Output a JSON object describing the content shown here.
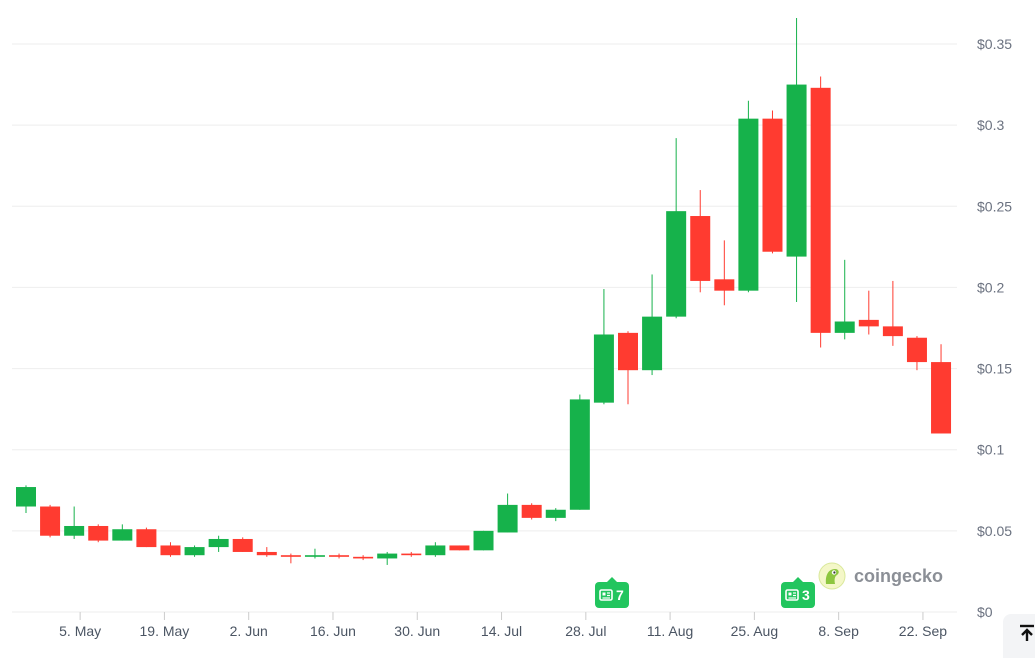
{
  "chart_data": {
    "type": "candlestick",
    "y_ticks": [
      "$0",
      "$0.05",
      "$0.1",
      "$0.15",
      "$0.2",
      "$0.25",
      "$0.3",
      "$0.35"
    ],
    "y_tick_values": [
      0,
      0.05,
      0.1,
      0.15,
      0.2,
      0.25,
      0.3,
      0.35
    ],
    "x_ticks": [
      "5. May",
      "19. May",
      "2. Jun",
      "16. Jun",
      "30. Jun",
      "14. Jul",
      "28. Jul",
      "11. Aug",
      "25. Aug",
      "8. Sep",
      "22. Sep"
    ],
    "ylim": [
      0,
      0.37
    ],
    "grid": true,
    "up_color": "#16b24b",
    "down_color": "#ff3b30",
    "candles": [
      {
        "date": "2024-04-28",
        "open": 0.065,
        "high": 0.078,
        "low": 0.061,
        "close": 0.077
      },
      {
        "date": "2024-05-02",
        "open": 0.065,
        "high": 0.066,
        "low": 0.046,
        "close": 0.047
      },
      {
        "date": "2024-05-06",
        "open": 0.047,
        "high": 0.065,
        "low": 0.045,
        "close": 0.053
      },
      {
        "date": "2024-05-10",
        "open": 0.053,
        "high": 0.054,
        "low": 0.043,
        "close": 0.044
      },
      {
        "date": "2024-05-14",
        "open": 0.044,
        "high": 0.054,
        "low": 0.044,
        "close": 0.051
      },
      {
        "date": "2024-05-18",
        "open": 0.051,
        "high": 0.052,
        "low": 0.04,
        "close": 0.04
      },
      {
        "date": "2024-05-22",
        "open": 0.041,
        "high": 0.043,
        "low": 0.034,
        "close": 0.035
      },
      {
        "date": "2024-05-26",
        "open": 0.035,
        "high": 0.041,
        "low": 0.034,
        "close": 0.04
      },
      {
        "date": "2024-05-30",
        "open": 0.04,
        "high": 0.047,
        "low": 0.037,
        "close": 0.045
      },
      {
        "date": "2024-06-03",
        "open": 0.045,
        "high": 0.046,
        "low": 0.037,
        "close": 0.037
      },
      {
        "date": "2024-06-07",
        "open": 0.037,
        "high": 0.04,
        "low": 0.034,
        "close": 0.035
      },
      {
        "date": "2024-06-11",
        "open": 0.035,
        "high": 0.036,
        "low": 0.03,
        "close": 0.034
      },
      {
        "date": "2024-06-15",
        "open": 0.034,
        "high": 0.039,
        "low": 0.033,
        "close": 0.035
      },
      {
        "date": "2024-06-19",
        "open": 0.035,
        "high": 0.036,
        "low": 0.033,
        "close": 0.034
      },
      {
        "date": "2024-06-23",
        "open": 0.034,
        "high": 0.035,
        "low": 0.032,
        "close": 0.033
      },
      {
        "date": "2024-06-27",
        "open": 0.033,
        "high": 0.037,
        "low": 0.029,
        "close": 0.036
      },
      {
        "date": "2024-07-01",
        "open": 0.036,
        "high": 0.037,
        "low": 0.034,
        "close": 0.035
      },
      {
        "date": "2024-07-05",
        "open": 0.035,
        "high": 0.043,
        "low": 0.034,
        "close": 0.041
      },
      {
        "date": "2024-07-09",
        "open": 0.041,
        "high": 0.041,
        "low": 0.038,
        "close": 0.038
      },
      {
        "date": "2024-07-13",
        "open": 0.038,
        "high": 0.05,
        "low": 0.038,
        "close": 0.05
      },
      {
        "date": "2024-07-17",
        "open": 0.049,
        "high": 0.073,
        "low": 0.049,
        "close": 0.066
      },
      {
        "date": "2024-07-21",
        "open": 0.066,
        "high": 0.067,
        "low": 0.057,
        "close": 0.058
      },
      {
        "date": "2024-07-25",
        "open": 0.058,
        "high": 0.064,
        "low": 0.056,
        "close": 0.063
      },
      {
        "date": "2024-07-29",
        "open": 0.063,
        "high": 0.134,
        "low": 0.063,
        "close": 0.131
      },
      {
        "date": "2024-08-02",
        "open": 0.129,
        "high": 0.199,
        "low": 0.128,
        "close": 0.171
      },
      {
        "date": "2024-08-06",
        "open": 0.172,
        "high": 0.173,
        "low": 0.128,
        "close": 0.149
      },
      {
        "date": "2024-08-10",
        "open": 0.149,
        "high": 0.208,
        "low": 0.146,
        "close": 0.182
      },
      {
        "date": "2024-08-14",
        "open": 0.182,
        "high": 0.292,
        "low": 0.181,
        "close": 0.247
      },
      {
        "date": "2024-08-18",
        "open": 0.244,
        "high": 0.26,
        "low": 0.197,
        "close": 0.204
      },
      {
        "date": "2024-08-22",
        "open": 0.205,
        "high": 0.229,
        "low": 0.189,
        "close": 0.198
      },
      {
        "date": "2024-08-26",
        "open": 0.198,
        "high": 0.315,
        "low": 0.197,
        "close": 0.304
      },
      {
        "date": "2024-08-30",
        "open": 0.304,
        "high": 0.309,
        "low": 0.221,
        "close": 0.222
      },
      {
        "date": "2024-09-03",
        "open": 0.219,
        "high": 0.366,
        "low": 0.191,
        "close": 0.325
      },
      {
        "date": "2024-09-07",
        "open": 0.323,
        "high": 0.33,
        "low": 0.163,
        "close": 0.172
      },
      {
        "date": "2024-09-11",
        "open": 0.172,
        "high": 0.217,
        "low": 0.168,
        "close": 0.179
      },
      {
        "date": "2024-09-15",
        "open": 0.18,
        "high": 0.198,
        "low": 0.171,
        "close": 0.176
      },
      {
        "date": "2024-09-19",
        "open": 0.176,
        "high": 0.204,
        "low": 0.164,
        "close": 0.17
      },
      {
        "date": "2024-09-23",
        "open": 0.169,
        "high": 0.17,
        "low": 0.149,
        "close": 0.154
      },
      {
        "date": "2024-09-27",
        "open": 0.154,
        "high": 0.165,
        "low": 0.11,
        "close": 0.11
      }
    ]
  },
  "news_badges": [
    {
      "count": "7",
      "icon": "newspaper-icon"
    },
    {
      "count": "3",
      "icon": "newspaper-icon"
    }
  ],
  "watermark": {
    "text": "coingecko",
    "icon": "coingecko-logo"
  },
  "scroll_top_button": {
    "icon": "arrow-to-top-icon"
  }
}
